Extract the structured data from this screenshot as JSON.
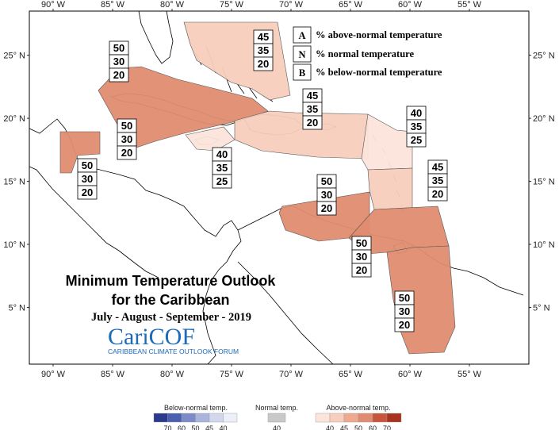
{
  "map": {
    "lon_ticks": [
      {
        "value": -90,
        "label": "90° W"
      },
      {
        "value": -85,
        "label": "85° W"
      },
      {
        "value": -80,
        "label": "80° W"
      },
      {
        "value": -75,
        "label": "75° W"
      },
      {
        "value": -70,
        "label": "70° W"
      },
      {
        "value": -65,
        "label": "65° W"
      },
      {
        "value": -60,
        "label": "60° W"
      },
      {
        "value": -55,
        "label": "55° W"
      }
    ],
    "lat_ticks": [
      {
        "value": 25,
        "label": "25° N"
      },
      {
        "value": 20,
        "label": "20° N"
      },
      {
        "value": 15,
        "label": "15° N"
      },
      {
        "value": 10,
        "label": "10° N"
      },
      {
        "value": 5,
        "label": "5° N"
      }
    ],
    "extent": {
      "lon_min": -92,
      "lon_max": -50,
      "lat_min": 0.5,
      "lat_max": 28.5
    }
  },
  "legend": {
    "items": [
      {
        "key": "A",
        "text": "% above-normal temperature"
      },
      {
        "key": "N",
        "text": "% normal temperature"
      },
      {
        "key": "B",
        "text": "% below-normal temperature"
      }
    ]
  },
  "regions": [
    {
      "id": "bahamas",
      "probs": [
        "45",
        "35",
        "20"
      ],
      "color": "#f7cdbd"
    },
    {
      "id": "cuba",
      "probs": [
        "50",
        "30",
        "20"
      ],
      "color": "#e08c70"
    },
    {
      "id": "belize",
      "probs": [
        "50",
        "30",
        "20"
      ],
      "color": "#e08c70"
    },
    {
      "id": "jamaica",
      "probs": [
        "40",
        "35",
        "25"
      ],
      "color": "#fbe4da"
    },
    {
      "id": "hispaniola",
      "probs": [
        "45",
        "35",
        "20"
      ],
      "color": "#f7cdbd"
    },
    {
      "id": "leeward",
      "probs": [
        "40",
        "35",
        "25"
      ],
      "color": "#fbe4da"
    },
    {
      "id": "windward",
      "probs": [
        "45",
        "35",
        "20"
      ],
      "color": "#f7cdbd"
    },
    {
      "id": "abc",
      "probs": [
        "50",
        "30",
        "20"
      ],
      "color": "#e08c70"
    },
    {
      "id": "trinidad",
      "probs": [
        "50",
        "30",
        "20"
      ],
      "color": "#e08c70"
    },
    {
      "id": "guianas",
      "probs": [
        "50",
        "30",
        "20"
      ],
      "color": "#e08c70"
    }
  ],
  "title": {
    "line1": "Minimum Temperature Outlook",
    "line2": "for the Caribbean",
    "period": "July - August - September - 2019"
  },
  "brand": {
    "name": "CariCOF",
    "tagline": "CARIBBEAN CLIMATE OUTLOOK FORUM"
  },
  "colorbars": {
    "below": {
      "title": "Below-normal temp.",
      "ticks": [
        "70",
        "60",
        "50",
        "45",
        "40"
      ],
      "colors": [
        "#2b3a8c",
        "#4a5fb0",
        "#7d8cc8",
        "#aab4dc",
        "#d2d7ee",
        "#eceef8"
      ]
    },
    "normal": {
      "title": "Normal temp.",
      "ticks": [
        "40"
      ],
      "colors": [
        "#c8c8c8"
      ]
    },
    "above": {
      "title": "Above-normal temp.",
      "ticks": [
        "40",
        "45",
        "50",
        "60",
        "70"
      ],
      "colors": [
        "#fbe4da",
        "#f7cdbd",
        "#eea98f",
        "#e08c70",
        "#c8553a",
        "#a8321e"
      ]
    }
  }
}
